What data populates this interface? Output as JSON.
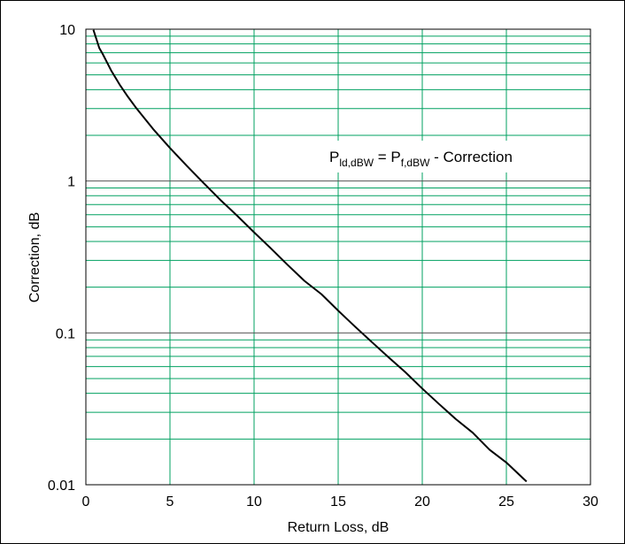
{
  "chart_data": {
    "type": "line",
    "title": "",
    "xlabel": "Return Loss, dB",
    "ylabel": "Correction, dB",
    "xlim": [
      0,
      30
    ],
    "ylim": [
      0.01,
      10
    ],
    "yscale": "log",
    "grid": true,
    "x_ticks": [
      "0",
      "5",
      "10",
      "15",
      "20",
      "25",
      "30"
    ],
    "y_ticks": [
      "0.01",
      "0.1",
      "1",
      "10"
    ],
    "annotation": {
      "p1": "P",
      "sub1": "ld,dBW",
      "eq": " = P",
      "sub2": "f,dBW",
      "tail": " - Correction"
    },
    "colors": {
      "minor_grid": "#00a060",
      "decade_grid": "#555555",
      "curve": "#000000"
    },
    "series": [
      {
        "x": [
          0.45,
          0.8,
          1,
          1.5,
          2,
          2.5,
          3,
          4,
          5,
          6,
          7,
          8,
          9,
          10,
          11,
          12,
          13,
          14,
          15,
          16,
          17,
          18,
          19,
          20,
          21,
          22,
          23,
          24,
          25,
          26,
          26.2
        ],
        "y": [
          9.9,
          7.5,
          6.87,
          5.35,
          4.33,
          3.59,
          3.02,
          2.2,
          1.65,
          1.26,
          0.97,
          0.75,
          0.59,
          0.46,
          0.36,
          0.28,
          0.22,
          0.18,
          0.14,
          0.11,
          0.087,
          0.069,
          0.055,
          0.043,
          0.034,
          0.027,
          0.022,
          0.017,
          0.014,
          0.011,
          0.0105
        ]
      }
    ]
  }
}
